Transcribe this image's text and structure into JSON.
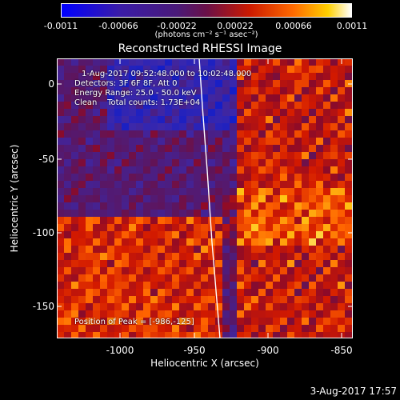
{
  "colorbar": {
    "ticks": [
      "-0.0011",
      "-0.00066",
      "-0.00022",
      "0.00022",
      "0.00066",
      "0.0011"
    ],
    "units": "(photons cm⁻² s⁻¹ asec⁻²)"
  },
  "title": "Reconstructed RHESSI Image",
  "annotations": {
    "time_range": "1-Aug-2017 09:52:48.000 to 10:02:48.000",
    "detectors": "Detectors: 3F 6F 8F, Att 0",
    "energy": "Energy Range: 25.0 - 50.0 keV",
    "clean": "Clean    Total counts: 1.73E+04",
    "peak": "Position of Peak = [-986,-125]"
  },
  "axes": {
    "xlabel": "Heliocentric X (arcsec)",
    "ylabel": "Heliocentric Y (arcsec)",
    "xticks": [
      "-1000",
      "-950",
      "-900",
      "-850"
    ],
    "yticks": [
      "0",
      "-50",
      "-100",
      "-150"
    ]
  },
  "datestamp": "3-Aug-2017 17:57",
  "colors": {
    "background": "#000000",
    "limb": "#ffffff"
  }
}
